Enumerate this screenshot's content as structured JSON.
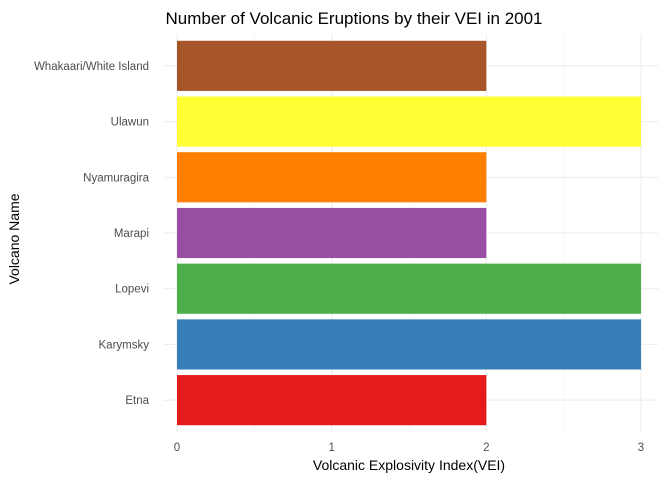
{
  "chart_data": {
    "type": "bar",
    "orientation": "horizontal",
    "title": "Number of Volcanic Eruptions by their VEI in 2001",
    "xlabel": "Volcanic Explosivity Index(VEI)",
    "ylabel": "Volcano Name",
    "categories": [
      "Etna",
      "Karymsky",
      "Lopevi",
      "Marapi",
      "Nyamuragira",
      "Ulawun",
      "Whakaari/White Island"
    ],
    "values": [
      2,
      3,
      3,
      2,
      2,
      3,
      2
    ],
    "colors": [
      "#E41A1C",
      "#377EB8",
      "#4DAF4A",
      "#984EA3",
      "#FF7F00",
      "#FFFF33",
      "#A65628"
    ],
    "xlim": [
      0,
      3
    ],
    "xticks": [
      0,
      1,
      2,
      3
    ],
    "grid": true,
    "legend": "none"
  }
}
